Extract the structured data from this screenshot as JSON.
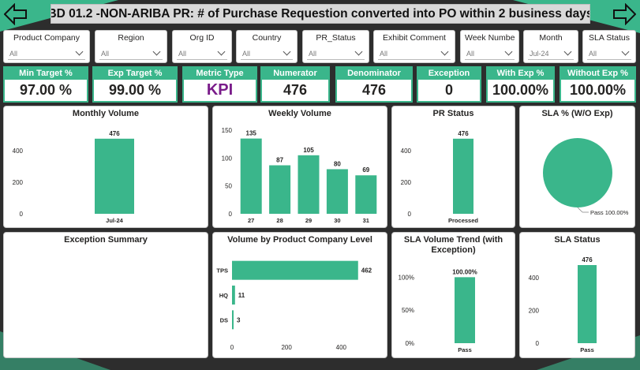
{
  "header": {
    "title": "BD 01.2 -NON-ARIBA PR: # of Purchase Requestion converted into PO within 2 business days"
  },
  "colors": {
    "accent": "#3ab68b",
    "kpi_text": "#7a1c8a",
    "background": "#2d2d2d"
  },
  "slicers": [
    {
      "label": "Product Company",
      "value": "All"
    },
    {
      "label": "Region",
      "value": "All"
    },
    {
      "label": "Org ID",
      "value": "All"
    },
    {
      "label": "Country",
      "value": "All"
    },
    {
      "label": "PR_Status",
      "value": "All"
    },
    {
      "label": "Exhibit Comment",
      "value": "All"
    },
    {
      "label": "Week Number",
      "value": "All"
    },
    {
      "label": "Month",
      "value": "Jul-24"
    },
    {
      "label": "SLA Status",
      "value": "All"
    }
  ],
  "kpis": [
    {
      "label": "Min Target %",
      "value": "97.00 %"
    },
    {
      "label": "Exp Target %",
      "value": "99.00 %"
    },
    {
      "label": "Metric Type",
      "value": "KPI"
    },
    {
      "label": "Numerator",
      "value": "476"
    },
    {
      "label": "Denominator",
      "value": "476"
    },
    {
      "label": "Exception",
      "value": "0"
    },
    {
      "label": "With Exp %",
      "value": "100.00%"
    },
    {
      "label": "Without Exp %",
      "value": "100.00%"
    }
  ],
  "cards": {
    "monthly_volume": "Monthly Volume",
    "weekly_volume": "Weekly Volume",
    "pr_status": "PR Status",
    "sla_pct": "SLA % (W/O Exp)",
    "exception_summary": "Exception Summary",
    "volume_by_company": "Volume by Product Company Level",
    "sla_trend": "SLA Volume Trend (with Exception)",
    "sla_status": "SLA Status"
  },
  "chart_data": [
    {
      "id": "monthly_volume",
      "type": "bar",
      "categories": [
        "Jul-24"
      ],
      "values": [
        476
      ],
      "ylim": [
        0,
        500
      ],
      "yticks": [
        0,
        200,
        400
      ],
      "data_labels": [
        "476"
      ]
    },
    {
      "id": "weekly_volume",
      "type": "bar",
      "categories": [
        "27",
        "28",
        "29",
        "30",
        "31"
      ],
      "values": [
        135,
        87,
        105,
        80,
        69
      ],
      "ylim": [
        0,
        150
      ],
      "yticks": [
        0,
        50,
        100,
        150
      ],
      "data_labels": [
        "135",
        "87",
        "105",
        "80",
        "69"
      ]
    },
    {
      "id": "pr_status",
      "type": "bar",
      "categories": [
        "Processed"
      ],
      "values": [
        476
      ],
      "ylim": [
        0,
        500
      ],
      "yticks": [
        0,
        200,
        400
      ],
      "data_labels": [
        "476"
      ]
    },
    {
      "id": "sla_pct",
      "type": "pie",
      "categories": [
        "Pass"
      ],
      "values": [
        100
      ],
      "data_labels": [
        "Pass 100.00%"
      ]
    },
    {
      "id": "volume_by_company",
      "type": "bar",
      "orientation": "horizontal",
      "categories": [
        "TPS",
        "HQ",
        "DS"
      ],
      "values": [
        462,
        11,
        3
      ],
      "xlim": [
        0,
        480
      ],
      "xticks": [
        0,
        200,
        400
      ],
      "data_labels": [
        "462",
        "11",
        "3"
      ]
    },
    {
      "id": "sla_trend",
      "type": "bar",
      "categories": [
        "Pass"
      ],
      "values": [
        100
      ],
      "ylim": [
        0,
        110
      ],
      "yticks": [
        "0%",
        "50%",
        "100%"
      ],
      "ytick_values": [
        0,
        50,
        100
      ],
      "data_labels": [
        "100.00%"
      ]
    },
    {
      "id": "sla_status",
      "type": "bar",
      "categories": [
        "Pass"
      ],
      "values": [
        476
      ],
      "ylim": [
        0,
        500
      ],
      "yticks": [
        0,
        200,
        400
      ],
      "data_labels": [
        "476"
      ]
    }
  ]
}
